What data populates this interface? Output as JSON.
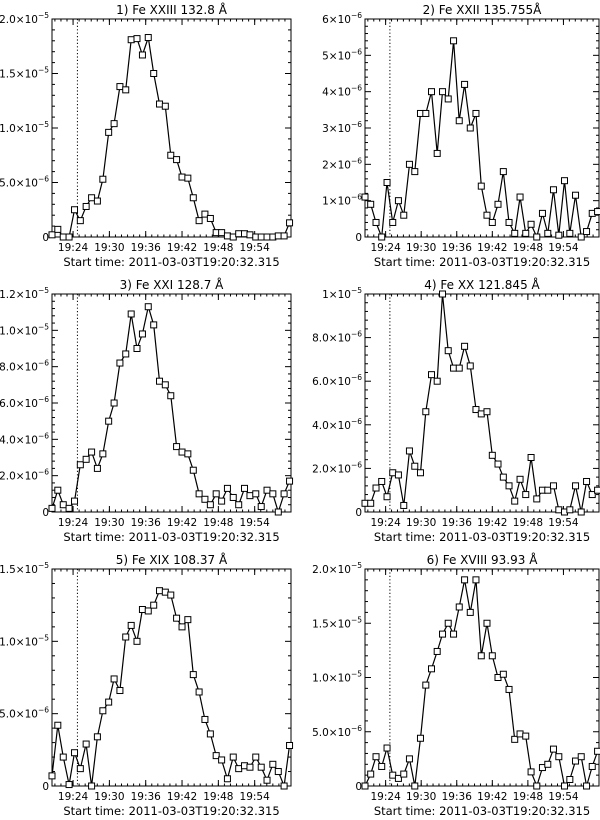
{
  "chart_data": [
    {
      "type": "line",
      "title": "1) Fe XXIII 132.8 Å",
      "xlabel": "Start time: 2011-03-03T19:20:32.315",
      "xlim": [
        19.342,
        20.0
      ],
      "ylim": [
        0,
        2e-05
      ],
      "xticks": [
        19.4,
        19.5,
        19.6,
        19.7,
        19.8,
        19.9
      ],
      "xtick_labels": [
        "19:24",
        "19:30",
        "19:36",
        "19:42",
        "19:48",
        "19:54"
      ],
      "yticks": [
        0,
        5e-06,
        1e-05,
        1.5e-05,
        2e-05
      ],
      "ytick_labels": [
        {
          "m": "0",
          "e": ""
        },
        {
          "m": "5.0×10",
          "e": "−6"
        },
        {
          "m": "1.0×10",
          "e": "−5"
        },
        {
          "m": "1.5×10",
          "e": "−5"
        },
        {
          "m": "2.0×10",
          "e": "−5"
        }
      ],
      "marker_line": 19.412,
      "series": [
        {
          "x": [
            19.342,
            19.358,
            19.373,
            19.389,
            19.404,
            19.42,
            19.436,
            19.451,
            19.467,
            19.482,
            19.498,
            19.513,
            19.529,
            19.545,
            19.56,
            19.576,
            19.591,
            19.607,
            19.622,
            19.638,
            19.654,
            19.669,
            19.685,
            19.7,
            19.716,
            19.731,
            19.747,
            19.763,
            19.778,
            19.794,
            19.809,
            19.825,
            19.841,
            19.856,
            19.872,
            19.887,
            19.903,
            19.918,
            19.934,
            19.95,
            19.965,
            19.981,
            19.996
          ],
          "y": [
            2e-07,
            7e-07,
            0,
            0,
            2.5e-06,
            1.5e-06,
            2.8e-06,
            3.6e-06,
            3.3e-06,
            5.3e-06,
            9.6e-06,
            1.04e-05,
            1.38e-05,
            1.35e-05,
            1.81e-05,
            1.82e-05,
            1.67e-05,
            1.83e-05,
            1.5e-05,
            1.22e-05,
            1.2e-05,
            7.5e-06,
            7.1e-06,
            5.5e-06,
            5.4e-06,
            3.6e-06,
            1.5e-06,
            2.1e-06,
            1.7e-06,
            4e-07,
            4e-07,
            1e-07,
            0,
            3e-07,
            3e-07,
            2e-07,
            0,
            0,
            0,
            0,
            1e-07,
            1e-07,
            1.3e-06
          ]
        }
      ]
    },
    {
      "type": "line",
      "title": "2) Fe XXII 135.755Å",
      "xlabel": "Start time: 2011-03-03T19:20:32.315",
      "xlim": [
        19.342,
        20.0
      ],
      "ylim": [
        0,
        6e-06
      ],
      "xticks": [
        19.4,
        19.5,
        19.6,
        19.7,
        19.8,
        19.9
      ],
      "xtick_labels": [
        "19:24",
        "19:30",
        "19:36",
        "19:42",
        "19:48",
        "19:54"
      ],
      "yticks": [
        0,
        1e-06,
        2e-06,
        3e-06,
        4e-06,
        5e-06,
        6e-06
      ],
      "ytick_labels": [
        {
          "m": "0",
          "e": ""
        },
        {
          "m": "1×10",
          "e": "−6"
        },
        {
          "m": "2×10",
          "e": "−6"
        },
        {
          "m": "3×10",
          "e": "−6"
        },
        {
          "m": "4×10",
          "e": "−6"
        },
        {
          "m": "5×10",
          "e": "−6"
        },
        {
          "m": "6×10",
          "e": "−6"
        }
      ],
      "marker_line": 19.412,
      "series": [
        {
          "x": [
            19.342,
            19.358,
            19.373,
            19.389,
            19.404,
            19.42,
            19.436,
            19.451,
            19.467,
            19.482,
            19.498,
            19.513,
            19.529,
            19.545,
            19.56,
            19.576,
            19.591,
            19.607,
            19.622,
            19.638,
            19.654,
            19.669,
            19.685,
            19.7,
            19.716,
            19.731,
            19.747,
            19.763,
            19.778,
            19.794,
            19.809,
            19.825,
            19.841,
            19.856,
            19.872,
            19.887,
            19.903,
            19.918,
            19.934,
            19.95,
            19.965,
            19.981,
            19.996
          ],
          "y": [
            1.1e-06,
            9e-07,
            4e-07,
            0,
            1.5e-06,
            4e-07,
            1e-06,
            6e-07,
            2e-06,
            1.8e-06,
            3.4e-06,
            3.4e-06,
            4e-06,
            2.3e-06,
            4e-06,
            3.8e-06,
            5.4e-06,
            3.2e-06,
            4.2e-06,
            3e-06,
            3.4e-06,
            1.4e-06,
            6e-07,
            4e-07,
            9e-07,
            1.8e-06,
            4e-07,
            1e-07,
            1.1e-06,
            1e-07,
            3.5e-07,
            0,
            6.5e-07,
            1e-07,
            1.3e-06,
            5e-08,
            1.55e-06,
            1e-07,
            1.15e-06,
            0,
            1.5e-07,
            6.5e-07,
            7e-07
          ]
        }
      ]
    },
    {
      "type": "line",
      "title": "3) Fe XXI 128.7  Å",
      "xlabel": "Start time: 2011-03-03T19:20:32.315",
      "xlim": [
        19.342,
        20.0
      ],
      "ylim": [
        0,
        1.2e-05
      ],
      "xticks": [
        19.4,
        19.5,
        19.6,
        19.7,
        19.8,
        19.9
      ],
      "xtick_labels": [
        "19:24",
        "19:30",
        "19:36",
        "19:42",
        "19:48",
        "19:54"
      ],
      "yticks": [
        0,
        2e-06,
        4e-06,
        6e-06,
        8e-06,
        1e-05,
        1.2e-05
      ],
      "ytick_labels": [
        {
          "m": "0",
          "e": ""
        },
        {
          "m": "2.0×10",
          "e": "−6"
        },
        {
          "m": "4.0×10",
          "e": "−6"
        },
        {
          "m": "6.0×10",
          "e": "−6"
        },
        {
          "m": "8.0×10",
          "e": "−6"
        },
        {
          "m": "1.0×10",
          "e": "−5"
        },
        {
          "m": "1.2×10",
          "e": "−5"
        }
      ],
      "marker_line": 19.412,
      "series": [
        {
          "x": [
            19.342,
            19.358,
            19.373,
            19.389,
            19.404,
            19.42,
            19.436,
            19.451,
            19.467,
            19.482,
            19.498,
            19.513,
            19.529,
            19.545,
            19.56,
            19.576,
            19.591,
            19.607,
            19.622,
            19.638,
            19.654,
            19.669,
            19.685,
            19.7,
            19.716,
            19.731,
            19.747,
            19.763,
            19.778,
            19.794,
            19.809,
            19.825,
            19.841,
            19.856,
            19.872,
            19.887,
            19.903,
            19.918,
            19.934,
            19.95,
            19.965,
            19.981,
            19.996
          ],
          "y": [
            2e-07,
            1.2e-06,
            4e-07,
            2e-07,
            6e-07,
            2.6e-06,
            2.9e-06,
            3.3e-06,
            2.4e-06,
            3.2e-06,
            5e-06,
            6e-06,
            8.2e-06,
            8.7e-06,
            1.09e-05,
            9e-06,
            9.8e-06,
            1.13e-05,
            1.03e-05,
            7.2e-06,
            7e-06,
            6.4e-06,
            3.6e-06,
            3.3e-06,
            3.2e-06,
            2.3e-06,
            1e-06,
            7e-07,
            4e-07,
            1e-06,
            6e-07,
            1.3e-06,
            8e-07,
            4e-07,
            1.3e-06,
            9e-07,
            1e-06,
            3e-07,
            1.2e-06,
            1e-06,
            0,
            1e-06,
            1.7e-06
          ]
        }
      ]
    },
    {
      "type": "line",
      "title": "4) Fe XX 121.845  Å",
      "xlabel": "Start time: 2011-03-03T19:20:32.315",
      "xlim": [
        19.342,
        20.0
      ],
      "ylim": [
        0,
        1e-05
      ],
      "xticks": [
        19.4,
        19.5,
        19.6,
        19.7,
        19.8,
        19.9
      ],
      "xtick_labels": [
        "19:24",
        "19:30",
        "19:36",
        "19:42",
        "19:48",
        "19:54"
      ],
      "yticks": [
        0,
        2e-06,
        4e-06,
        6e-06,
        8e-06,
        1e-05
      ],
      "ytick_labels": [
        {
          "m": "0",
          "e": ""
        },
        {
          "m": "2.0×10",
          "e": "−6"
        },
        {
          "m": "4.0×10",
          "e": "−6"
        },
        {
          "m": "6.0×10",
          "e": "−6"
        },
        {
          "m": "8.0×10",
          "e": "−6"
        },
        {
          "m": "1×10",
          "e": "−5"
        }
      ],
      "marker_line": 19.412,
      "series": [
        {
          "x": [
            19.342,
            19.358,
            19.373,
            19.389,
            19.404,
            19.42,
            19.436,
            19.451,
            19.467,
            19.482,
            19.498,
            19.513,
            19.529,
            19.545,
            19.56,
            19.576,
            19.591,
            19.607,
            19.622,
            19.638,
            19.654,
            19.669,
            19.685,
            19.7,
            19.716,
            19.731,
            19.747,
            19.763,
            19.778,
            19.794,
            19.809,
            19.825,
            19.841,
            19.856,
            19.872,
            19.887,
            19.903,
            19.918,
            19.934,
            19.95,
            19.965,
            19.981,
            19.996
          ],
          "y": [
            4e-07,
            4e-07,
            1.1e-06,
            1.4e-06,
            7e-07,
            1.8e-06,
            1.7e-06,
            3e-07,
            2.8e-06,
            2.1e-06,
            1.8e-06,
            4.6e-06,
            6.3e-06,
            6e-06,
            1e-05,
            7.4e-06,
            6.6e-06,
            6.6e-06,
            7.6e-06,
            6.7e-06,
            4.7e-06,
            4.5e-06,
            4.6e-06,
            2.6e-06,
            2.2e-06,
            1.6e-06,
            1.2e-06,
            5e-07,
            1.5e-06,
            8e-07,
            2.5e-06,
            6e-07,
            1e-06,
            1e-06,
            1.2e-06,
            1e-07,
            0,
            1e-07,
            1.2e-06,
            0,
            1.4e-06,
            8e-07,
            1e-06
          ]
        }
      ]
    },
    {
      "type": "line",
      "title": "5) Fe XIX 108.37  Å",
      "xlabel": "Start time: 2011-03-03T19:20:32.315",
      "xlim": [
        19.342,
        20.0
      ],
      "ylim": [
        0,
        1.5e-05
      ],
      "xticks": [
        19.4,
        19.5,
        19.6,
        19.7,
        19.8,
        19.9
      ],
      "xtick_labels": [
        "19:24",
        "19:30",
        "19:36",
        "19:42",
        "19:48",
        "19:54"
      ],
      "yticks": [
        0,
        5e-06,
        1e-05,
        1.5e-05
      ],
      "ytick_labels": [
        {
          "m": "0",
          "e": ""
        },
        {
          "m": "5.0×10",
          "e": "−6"
        },
        {
          "m": "1.0×10",
          "e": "−5"
        },
        {
          "m": "1.5×10",
          "e": "−5"
        }
      ],
      "marker_line": 19.412,
      "series": [
        {
          "x": [
            19.342,
            19.358,
            19.373,
            19.389,
            19.404,
            19.42,
            19.436,
            19.451,
            19.467,
            19.482,
            19.498,
            19.513,
            19.529,
            19.545,
            19.56,
            19.576,
            19.591,
            19.607,
            19.622,
            19.638,
            19.654,
            19.669,
            19.685,
            19.7,
            19.716,
            19.731,
            19.747,
            19.763,
            19.778,
            19.794,
            19.809,
            19.825,
            19.841,
            19.856,
            19.872,
            19.887,
            19.903,
            19.918,
            19.934,
            19.95,
            19.965,
            19.981,
            19.996
          ],
          "y": [
            7e-07,
            4.2e-06,
            2e-06,
            1e-07,
            2.3e-06,
            1.2e-06,
            2.9e-06,
            0,
            3.4e-06,
            5.2e-06,
            5.8e-06,
            7.4e-06,
            6.6e-06,
            1.03e-05,
            1.11e-05,
            1e-05,
            1.22e-05,
            1.21e-05,
            1.25e-05,
            1.35e-05,
            1.34e-05,
            1.32e-05,
            1.16e-05,
            1.1e-05,
            1.15e-05,
            7.7e-06,
            6.5e-06,
            4.6e-06,
            3.6e-06,
            2.1e-06,
            1.8e-06,
            5e-07,
            2e-06,
            1.2e-06,
            1.4e-06,
            1.3e-06,
            2e-06,
            1.3e-06,
            4e-07,
            1.5e-06,
            1e-06,
            0,
            2.8e-06
          ]
        }
      ]
    },
    {
      "type": "line",
      "title": "6) Fe XVIII 93.93 Å",
      "xlabel": "Start time: 2011-03-03T19:20:32.315",
      "xlim": [
        19.342,
        20.0
      ],
      "ylim": [
        0,
        2e-05
      ],
      "xticks": [
        19.4,
        19.5,
        19.6,
        19.7,
        19.8,
        19.9
      ],
      "xtick_labels": [
        "19:24",
        "19:30",
        "19:36",
        "19:42",
        "19:48",
        "19:54"
      ],
      "yticks": [
        0,
        5e-06,
        1e-05,
        1.5e-05,
        2e-05
      ],
      "ytick_labels": [
        {
          "m": "0",
          "e": ""
        },
        {
          "m": "5.0×10",
          "e": "−6"
        },
        {
          "m": "1.0×10",
          "e": "−5"
        },
        {
          "m": "1.5×10",
          "e": "−5"
        },
        {
          "m": "2.0×10",
          "e": "−5"
        }
      ],
      "marker_line": 19.412,
      "series": [
        {
          "x": [
            19.342,
            19.358,
            19.373,
            19.389,
            19.404,
            19.42,
            19.436,
            19.451,
            19.467,
            19.482,
            19.498,
            19.513,
            19.529,
            19.545,
            19.56,
            19.576,
            19.591,
            19.607,
            19.622,
            19.638,
            19.654,
            19.669,
            19.685,
            19.7,
            19.716,
            19.731,
            19.747,
            19.763,
            19.778,
            19.794,
            19.809,
            19.825,
            19.841,
            19.856,
            19.872,
            19.887,
            19.903,
            19.918,
            19.934,
            19.95,
            19.965,
            19.981,
            19.996
          ],
          "y": [
            0,
            1.1e-06,
            2.7e-06,
            1.8e-06,
            3.5e-06,
            1e-06,
            7e-07,
            1.1e-06,
            2.5e-06,
            0,
            4.4e-06,
            9.3e-06,
            1.08e-05,
            1.24e-05,
            1.4e-05,
            1.5e-05,
            1.4e-05,
            1.65e-05,
            1.9e-05,
            1.6e-05,
            1.9e-05,
            1.2e-05,
            1.5e-05,
            1.2e-05,
            1e-05,
            1.03e-05,
            8.9e-06,
            4.3e-06,
            4.8e-06,
            4.6e-06,
            1.3e-06,
            0,
            1.7e-06,
            2e-06,
            3.4e-06,
            2.7e-06,
            0,
            6e-07,
            2.3e-06,
            2.7e-06,
            0,
            1.8e-06,
            3.2e-06
          ]
        }
      ]
    }
  ]
}
